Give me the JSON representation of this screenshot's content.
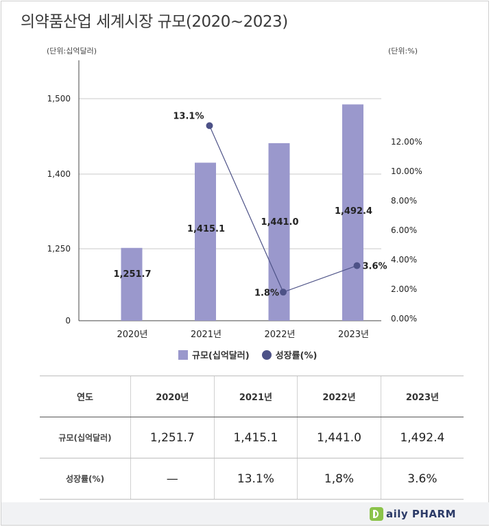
{
  "title": "의약품산업 세계시장 규모(2020~2023)",
  "unit_left": "(단위:십억달러)",
  "unit_right": "(단위:%)",
  "legend": {
    "bar_label": "규모(십억달러)",
    "line_label": "성장률(%)"
  },
  "colors": {
    "bar": "#9a98cc",
    "line": "#4d5287",
    "grid": "#c8c8c8",
    "axis": "#444444"
  },
  "chart_data": {
    "type": "bar",
    "title": "의약품산업 세계시장 규모(2020~2023)",
    "categories": [
      "2020년",
      "2021년",
      "2022년",
      "2023년"
    ],
    "series": [
      {
        "name": "규모(십억달러)",
        "type": "bar",
        "axis": "left",
        "values": [
          1251.7,
          1415.1,
          1441.0,
          1492.4
        ],
        "labels": [
          "1,251.7",
          "1,415.1",
          "1,441.0",
          "1,492.4"
        ]
      },
      {
        "name": "성장률(%)",
        "type": "line",
        "axis": "right",
        "values": [
          null,
          13.1,
          1.8,
          3.6
        ],
        "labels": [
          "",
          "13.1%",
          "1.8%",
          "3.6%"
        ]
      }
    ],
    "y_left": {
      "ticks": [
        0,
        1250,
        1400,
        1500
      ],
      "tick_labels": [
        "0",
        "1,250",
        "1,400",
        "1,500"
      ],
      "broken_axis": true
    },
    "y_right": {
      "range": [
        0,
        12
      ],
      "ticks": [
        0,
        2,
        4,
        6,
        8,
        10,
        12
      ],
      "tick_labels": [
        "0.00%",
        "2.00%",
        "4.00%",
        "6.00%",
        "8.00%",
        "10.00%",
        "12.00%"
      ]
    },
    "grid": true,
    "legend_position": "bottom"
  },
  "table": {
    "header": [
      "연도",
      "2020년",
      "2021년",
      "2022년",
      "2023년"
    ],
    "rows": [
      {
        "label": "규모(십억달러)",
        "values": [
          "1,251.7",
          "1,415.1",
          "1,441.0",
          "1,492.4"
        ]
      },
      {
        "label": "성장률(%)",
        "values": [
          "—",
          "13.1%",
          "1,8%",
          "3.6%"
        ]
      }
    ]
  },
  "footer": {
    "logo_text": "aily PHARM"
  }
}
